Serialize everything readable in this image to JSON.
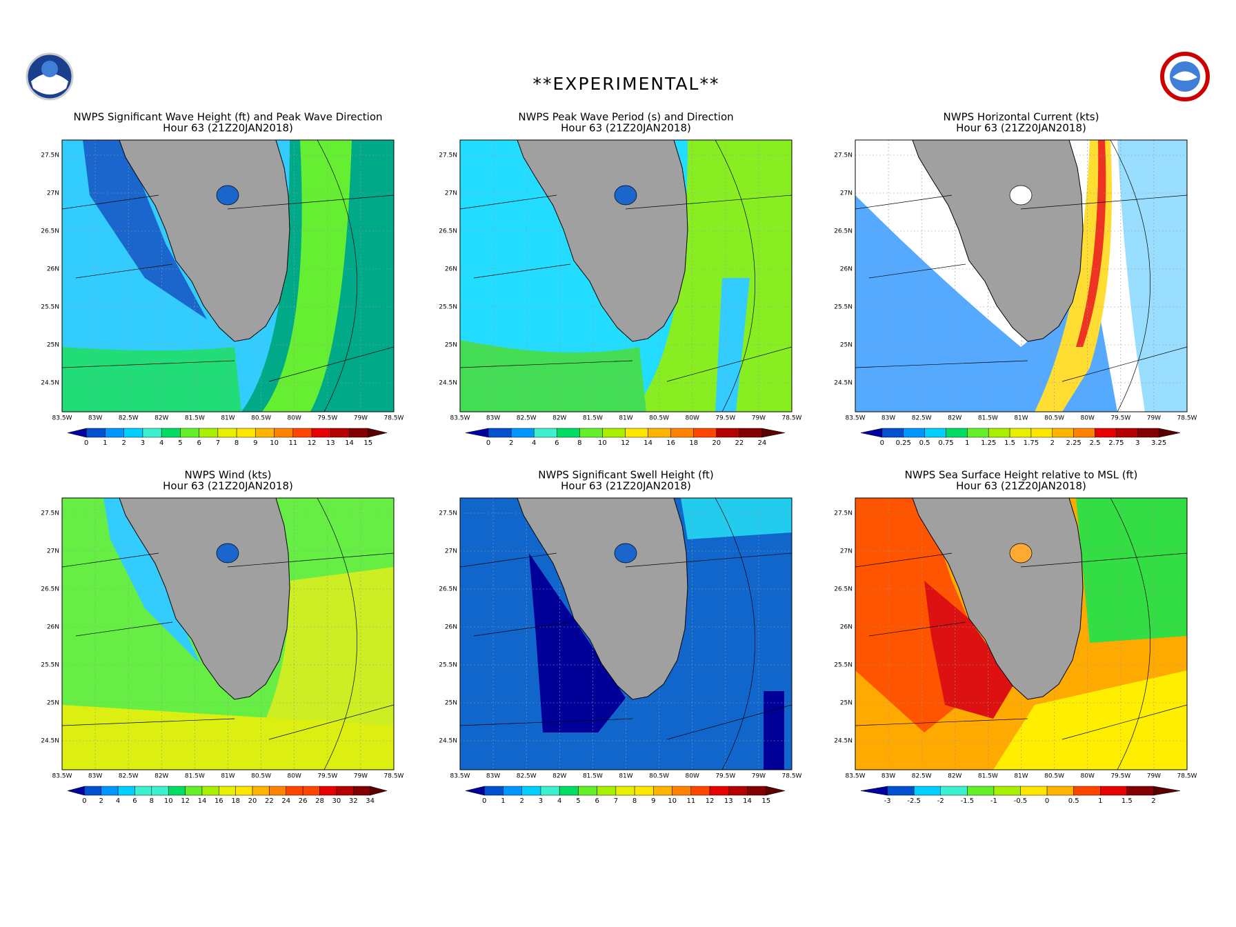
{
  "header": {
    "title": "**EXPERIMENTAL**"
  },
  "lat_labels": [
    "27.5N",
    "27N",
    "26.5N",
    "26N",
    "25.5N",
    "25N",
    "24.5N"
  ],
  "lon_labels": [
    "83.5W",
    "83W",
    "82.5W",
    "82W",
    "81.5W",
    "81W",
    "80.5W",
    "80W",
    "79.5W",
    "79W",
    "78.5W"
  ],
  "panels": [
    {
      "title": "NWPS Significant Wave Height (ft) and Peak Wave Direction",
      "subtitle": "Hour 63 (21Z20JAN2018)",
      "colorbar": [
        0,
        1,
        2,
        3,
        4,
        5,
        6,
        7,
        8,
        9,
        10,
        11,
        12,
        13,
        14,
        15
      ]
    },
    {
      "title": "NWPS Peak Wave Period (s) and Direction",
      "subtitle": "Hour 63 (21Z20JAN2018)",
      "colorbar": [
        0,
        2,
        4,
        6,
        8,
        10,
        12,
        14,
        16,
        18,
        20,
        22,
        24
      ]
    },
    {
      "title": "NWPS Horizontal Current (kts)",
      "subtitle": "Hour 63 (21Z20JAN2018)",
      "colorbar": [
        0,
        0.25,
        0.5,
        0.75,
        1,
        1.25,
        1.5,
        1.75,
        2,
        2.25,
        2.5,
        2.75,
        3,
        3.25
      ]
    },
    {
      "title": "NWPS Wind (kts)",
      "subtitle": "Hour 63 (21Z20JAN2018)",
      "colorbar": [
        0,
        2,
        4,
        6,
        8,
        10,
        12,
        14,
        16,
        18,
        20,
        22,
        24,
        26,
        28,
        30,
        32,
        34
      ]
    },
    {
      "title": "NWPS Significant Swell Height (ft)",
      "subtitle": "Hour 63 (21Z20JAN2018)",
      "colorbar": [
        0,
        1,
        2,
        3,
        4,
        5,
        6,
        7,
        8,
        9,
        10,
        11,
        12,
        13,
        14,
        15
      ]
    },
    {
      "title": "NWPS Sea Surface Height relative to MSL (ft)",
      "subtitle": "Hour 63 (21Z20JAN2018)",
      "colorbar": [
        -3,
        -2.5,
        -2,
        -1.5,
        -1,
        -0.5,
        0,
        0.5,
        1,
        1.5,
        2
      ]
    }
  ]
}
